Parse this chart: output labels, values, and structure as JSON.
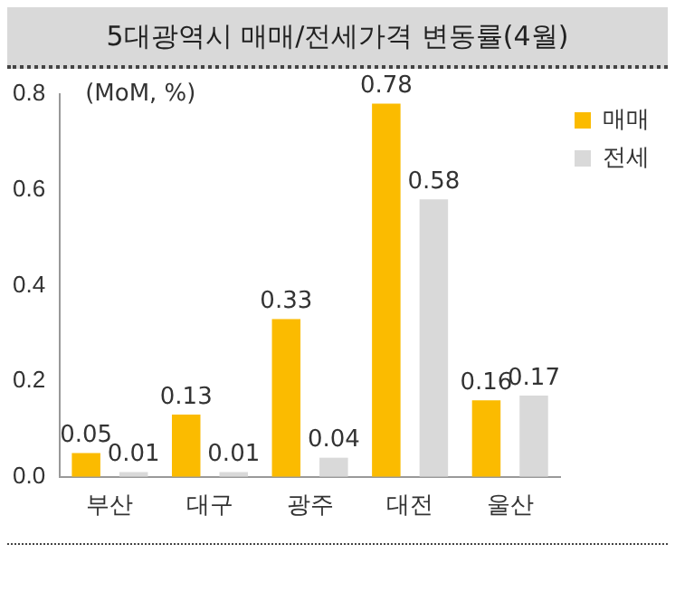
{
  "chart_data": {
    "type": "bar",
    "title": "5대광역시 매매/전세가격 변동률(4월)",
    "ylabel": "(MoM, %)",
    "categories": [
      "부산",
      "대구",
      "광주",
      "대전",
      "울산"
    ],
    "series": [
      {
        "name": "매매",
        "color": "#fbbb00",
        "values": [
          0.05,
          0.13,
          0.33,
          0.78,
          0.16
        ]
      },
      {
        "name": "전세",
        "color": "#d9d9d9",
        "values": [
          0.01,
          0.01,
          0.04,
          0.58,
          0.17
        ]
      }
    ],
    "ylim": [
      0,
      0.8
    ],
    "yticks": [
      {
        "value": 0,
        "label": "0.0"
      },
      0.2,
      0.4,
      0.6,
      0.8
    ],
    "grid": false,
    "legend": "top right",
    "data_labels": true
  }
}
